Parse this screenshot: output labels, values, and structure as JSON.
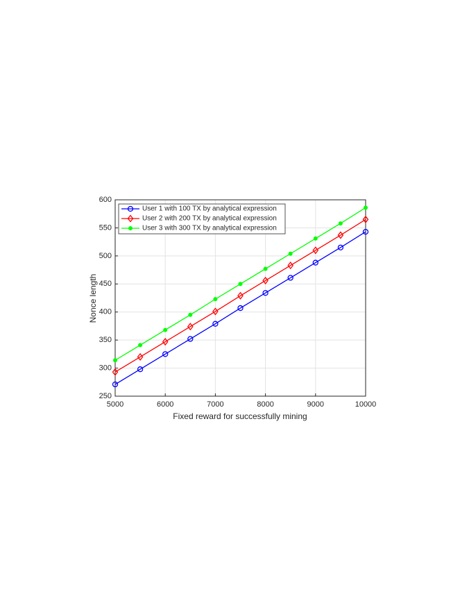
{
  "chart_data": {
    "type": "line",
    "x_label": "Fixed reward for successfully mining",
    "y_label": "Nonce length",
    "x": [
      5000,
      5500,
      6000,
      6500,
      7000,
      7500,
      8000,
      8500,
      9000,
      9500,
      10000
    ],
    "series": [
      {
        "name": "User 1 with 100 TX by analytical expression",
        "color": "#0000ff",
        "marker": "circle",
        "values": [
          271,
          298,
          325,
          352,
          379,
          407,
          434,
          461,
          488,
          515,
          543
        ]
      },
      {
        "name": "User 2 with 200 TX by analytical expression",
        "color": "#ff0000",
        "marker": "diamond",
        "values": [
          293,
          320,
          347,
          374,
          401,
          429,
          456,
          483,
          510,
          537,
          565
        ]
      },
      {
        "name": "User 3 with 300 TX by analytical expression",
        "color": "#00ff00",
        "marker": "dot",
        "values": [
          314,
          341,
          368,
          395,
          423,
          450,
          477,
          504,
          531,
          558,
          586
        ]
      }
    ],
    "xlim": [
      5000,
      10000
    ],
    "xticks": [
      5000,
      6000,
      7000,
      8000,
      9000,
      10000
    ],
    "ylim": [
      250,
      600
    ],
    "yticks": [
      250,
      300,
      350,
      400,
      450,
      500,
      550,
      600
    ],
    "grid": true,
    "legend": "upper-left"
  }
}
